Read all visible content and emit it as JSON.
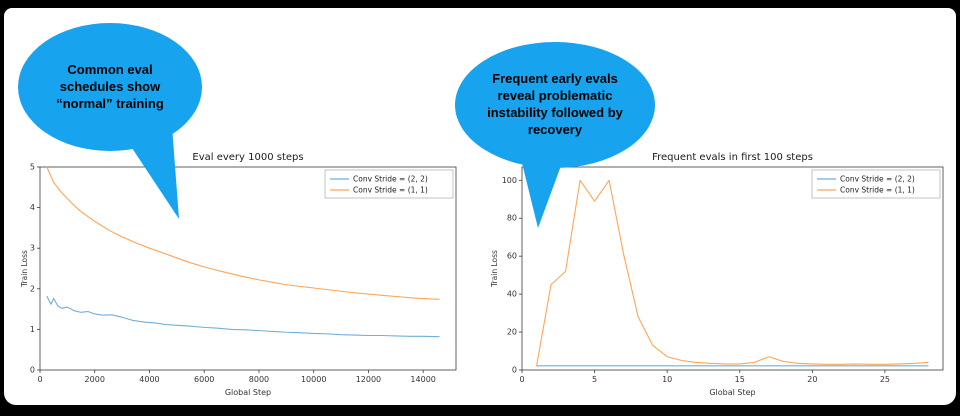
{
  "slide": {
    "bubble_color": "#18a3ef",
    "bubbles": [
      {
        "text": "Common eval schedules show “normal” training"
      },
      {
        "text": "Frequent early evals reveal problematic instability followed by recovery"
      }
    ]
  },
  "chart_data": [
    {
      "type": "line",
      "title": "Eval every 1000 steps",
      "xlabel": "Global Step",
      "ylabel": "Train Loss",
      "xlim": [
        0,
        15200
      ],
      "ylim": [
        0,
        5
      ],
      "xticks": [
        0,
        2000,
        4000,
        6000,
        8000,
        10000,
        12000,
        14000
      ],
      "yticks": [
        0,
        1,
        2,
        3,
        4,
        5
      ],
      "grid": false,
      "legend_position": "upper right",
      "series": [
        {
          "name": "Conv Stride =  (2, 2)",
          "color": "#6fb0d8",
          "x": [
            250,
            400,
            500,
            650,
            800,
            1000,
            1250,
            1500,
            1750,
            2000,
            2300,
            2600,
            3000,
            3400,
            3800,
            4200,
            4600,
            5000,
            5500,
            6000,
            6500,
            7000,
            7500,
            8000,
            8500,
            9000,
            9500,
            10000,
            10500,
            11000,
            11500,
            12000,
            12500,
            13000,
            13500,
            14000,
            14600
          ],
          "y": [
            1.82,
            1.62,
            1.76,
            1.58,
            1.52,
            1.55,
            1.46,
            1.42,
            1.44,
            1.38,
            1.35,
            1.36,
            1.3,
            1.22,
            1.18,
            1.16,
            1.12,
            1.1,
            1.08,
            1.05,
            1.03,
            1.0,
            0.99,
            0.97,
            0.95,
            0.93,
            0.92,
            0.9,
            0.89,
            0.87,
            0.86,
            0.85,
            0.85,
            0.84,
            0.83,
            0.83,
            0.82
          ]
        },
        {
          "name": "Conv Stride =  (1, 1)",
          "color": "#ffa558",
          "x": [
            250,
            500,
            750,
            1000,
            1250,
            1500,
            1750,
            2000,
            2500,
            3000,
            3500,
            4000,
            4500,
            5000,
            5500,
            6000,
            6500,
            7000,
            7500,
            8000,
            8500,
            9000,
            9500,
            10000,
            10500,
            11000,
            11500,
            12000,
            12500,
            13000,
            13500,
            14000,
            14600
          ],
          "y": [
            5.0,
            4.62,
            4.4,
            4.22,
            4.05,
            3.9,
            3.78,
            3.66,
            3.45,
            3.28,
            3.13,
            3.0,
            2.88,
            2.76,
            2.64,
            2.54,
            2.45,
            2.37,
            2.29,
            2.22,
            2.16,
            2.1,
            2.06,
            2.02,
            1.98,
            1.94,
            1.9,
            1.87,
            1.84,
            1.81,
            1.78,
            1.76,
            1.74
          ]
        }
      ]
    },
    {
      "type": "line",
      "title": "Frequent evals in first 100 steps",
      "xlabel": "Global Step",
      "ylabel": "Train Loss",
      "xlim": [
        0,
        29
      ],
      "ylim": [
        0,
        107
      ],
      "xticks": [
        0,
        5,
        10,
        15,
        20,
        25
      ],
      "yticks": [
        0,
        20,
        40,
        60,
        80,
        100
      ],
      "grid": false,
      "legend_position": "upper right",
      "series": [
        {
          "name": "Conv Stride =  (2, 2)",
          "color": "#6fb0d8",
          "x": [
            1,
            3,
            5,
            8,
            10,
            13,
            16,
            19,
            22,
            25,
            28
          ],
          "y": [
            2.2,
            2.2,
            2.2,
            2.2,
            2.2,
            2.2,
            2.2,
            2.2,
            2.2,
            2.2,
            2.2
          ]
        },
        {
          "name": "Conv Stride =  (1, 1)",
          "color": "#ffa558",
          "x": [
            1,
            2,
            3,
            4,
            5,
            6,
            7,
            8,
            9,
            10,
            11,
            12,
            13,
            14,
            15,
            16,
            17,
            18,
            19,
            20,
            21,
            22,
            23,
            24,
            25,
            26,
            27,
            28
          ],
          "y": [
            2,
            45,
            52,
            100,
            89,
            100,
            61,
            28,
            13,
            7,
            5,
            4,
            3.5,
            3.2,
            3.2,
            4,
            7,
            4.5,
            3.5,
            3.2,
            3,
            3,
            3.2,
            3,
            3,
            3.2,
            3.5,
            4
          ]
        }
      ]
    }
  ]
}
